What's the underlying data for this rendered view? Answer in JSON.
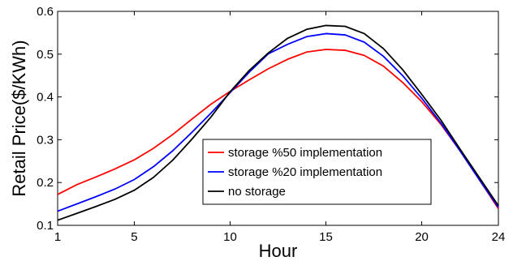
{
  "chart_data": {
    "type": "line",
    "title": "",
    "xlabel": "Hour",
    "ylabel": "Retail Price($/KWh)",
    "xlim": [
      1,
      24
    ],
    "ylim": [
      0.1,
      0.6
    ],
    "xticks": [
      1,
      5,
      10,
      15,
      20,
      24
    ],
    "yticks": [
      0.1,
      0.2,
      0.3,
      0.4,
      0.5,
      0.6
    ],
    "ytick_labels": [
      "0.1",
      "0.2",
      "0.3",
      "0.4",
      "0.5",
      "0.6"
    ],
    "grid": false,
    "legend_position": "lower-right",
    "x": [
      1,
      2,
      3,
      4,
      5,
      6,
      7,
      8,
      9,
      10,
      11,
      12,
      13,
      14,
      15,
      16,
      17,
      18,
      19,
      20,
      21,
      22,
      23,
      24
    ],
    "series": [
      {
        "name": "storage %50 implementation",
        "color": "#ff0000",
        "values": [
          0.172,
          0.195,
          0.213,
          0.232,
          0.253,
          0.28,
          0.312,
          0.348,
          0.383,
          0.413,
          0.44,
          0.466,
          0.488,
          0.505,
          0.511,
          0.509,
          0.497,
          0.472,
          0.434,
          0.389,
          0.336,
          0.274,
          0.207,
          0.139
        ]
      },
      {
        "name": "storage %20 implementation",
        "color": "#0000ff",
        "values": [
          0.133,
          0.15,
          0.167,
          0.185,
          0.207,
          0.237,
          0.274,
          0.317,
          0.362,
          0.41,
          0.458,
          0.501,
          0.523,
          0.541,
          0.548,
          0.545,
          0.528,
          0.495,
          0.45,
          0.397,
          0.339,
          0.274,
          0.207,
          0.142
        ]
      },
      {
        "name": "no storage",
        "color": "#000000",
        "values": [
          0.112,
          0.128,
          0.144,
          0.161,
          0.182,
          0.212,
          0.252,
          0.301,
          0.353,
          0.412,
          0.462,
          0.503,
          0.537,
          0.558,
          0.567,
          0.565,
          0.548,
          0.513,
          0.464,
          0.406,
          0.346,
          0.278,
          0.212,
          0.146
        ]
      }
    ]
  }
}
